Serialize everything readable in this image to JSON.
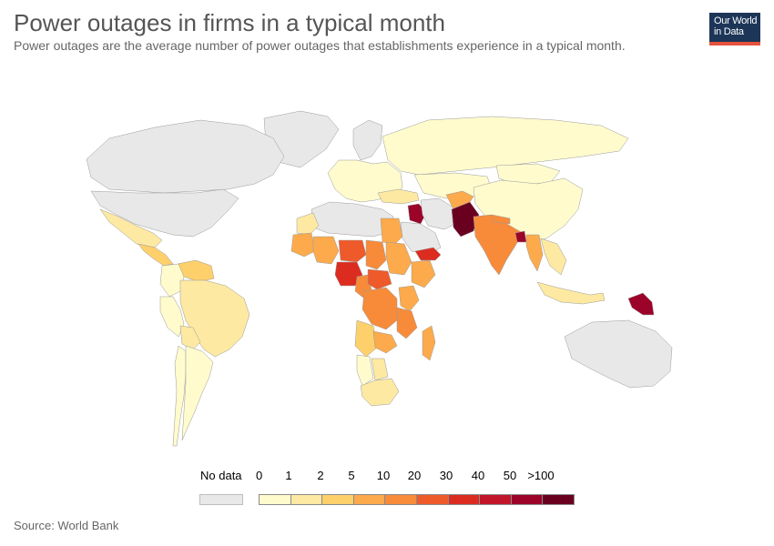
{
  "header": {
    "title": "Power outages in firms in a typical month",
    "subtitle": "Power outages are the average number of power outages that establishments experience in a typical month."
  },
  "logo": {
    "line1": "Our World",
    "line2": "in Data",
    "bg_color": "#1d3557",
    "accent_color": "#e5533f"
  },
  "map": {
    "no_data_color": "#e8e8e8",
    "regions": [
      {
        "name": "Canada",
        "bin": "nodata"
      },
      {
        "name": "United States",
        "bin": "nodata"
      },
      {
        "name": "Greenland",
        "bin": "nodata"
      },
      {
        "name": "Mexico",
        "bin": "1-2"
      },
      {
        "name": "Central America",
        "bin": "2-5"
      },
      {
        "name": "Colombia",
        "bin": "0-1"
      },
      {
        "name": "Venezuela",
        "bin": "2-5"
      },
      {
        "name": "Brazil",
        "bin": "1-2"
      },
      {
        "name": "Peru",
        "bin": "0-1"
      },
      {
        "name": "Bolivia",
        "bin": "1-2"
      },
      {
        "name": "Argentina",
        "bin": "0-1"
      },
      {
        "name": "Chile",
        "bin": "0-1"
      },
      {
        "name": "Europe",
        "bin": "0-1"
      },
      {
        "name": "Scandinavia",
        "bin": "nodata"
      },
      {
        "name": "Russia",
        "bin": "0-1"
      },
      {
        "name": "Kazakhstan",
        "bin": "0-1"
      },
      {
        "name": "Turkey",
        "bin": "1-2"
      },
      {
        "name": "Iraq",
        "bin": "50-100"
      },
      {
        "name": "Iran",
        "bin": "nodata"
      },
      {
        "name": "Saudi Arabia",
        "bin": "nodata"
      },
      {
        "name": "Yemen",
        "bin": "30-40"
      },
      {
        "name": "Afghanistan",
        "bin": "5-10"
      },
      {
        "name": "Pakistan",
        "bin": ">100"
      },
      {
        "name": "India",
        "bin": "10-20"
      },
      {
        "name": "Nepal",
        "bin": "10-20"
      },
      {
        "name": "Bangladesh",
        "bin": "50-100"
      },
      {
        "name": "China",
        "bin": "0-1"
      },
      {
        "name": "Mongolia",
        "bin": "0-1"
      },
      {
        "name": "Myanmar",
        "bin": "5-10"
      },
      {
        "name": "Southeast Asia",
        "bin": "1-2"
      },
      {
        "name": "Indonesia",
        "bin": "1-2"
      },
      {
        "name": "Papua New Guinea",
        "bin": "50-100"
      },
      {
        "name": "Australia",
        "bin": "nodata"
      },
      {
        "name": "North Africa",
        "bin": "nodata"
      },
      {
        "name": "Morocco",
        "bin": "1-2"
      },
      {
        "name": "Egypt",
        "bin": "5-10"
      },
      {
        "name": "Mauritania",
        "bin": "5-10"
      },
      {
        "name": "Mali",
        "bin": "5-10"
      },
      {
        "name": "Niger",
        "bin": "20-30"
      },
      {
        "name": "Nigeria",
        "bin": "30-40"
      },
      {
        "name": "Chad",
        "bin": "10-20"
      },
      {
        "name": "Sudan",
        "bin": "5-10"
      },
      {
        "name": "Ethiopia",
        "bin": "5-10"
      },
      {
        "name": "Cameroon",
        "bin": "10-20"
      },
      {
        "name": "Central African Republic",
        "bin": "20-30"
      },
      {
        "name": "DR Congo",
        "bin": "10-20"
      },
      {
        "name": "Tanzania",
        "bin": "10-20"
      },
      {
        "name": "Kenya",
        "bin": "5-10"
      },
      {
        "name": "Angola",
        "bin": "2-5"
      },
      {
        "name": "Zambia",
        "bin": "5-10"
      },
      {
        "name": "Namibia",
        "bin": "0-1"
      },
      {
        "name": "Botswana",
        "bin": "1-2"
      },
      {
        "name": "South Africa",
        "bin": "1-2"
      },
      {
        "name": "Madagascar",
        "bin": "5-10"
      }
    ]
  },
  "legend": {
    "no_data_label": "No data",
    "ticks": [
      "0",
      "1",
      "2",
      "5",
      "10",
      "20",
      "30",
      "40",
      "50",
      ">100"
    ],
    "bins": [
      {
        "key": "0-1",
        "color": "#fffbcd"
      },
      {
        "key": "1-2",
        "color": "#fde9a2"
      },
      {
        "key": "2-5",
        "color": "#fdd06b"
      },
      {
        "key": "5-10",
        "color": "#fcaa4b"
      },
      {
        "key": "10-20",
        "color": "#f78b3a"
      },
      {
        "key": "20-30",
        "color": "#ee5a2a"
      },
      {
        "key": "30-40",
        "color": "#dc2c20"
      },
      {
        "key": "40-50",
        "color": "#c11529"
      },
      {
        "key": "50-100",
        "color": "#9c0328"
      },
      {
        "key": ">100",
        "color": "#6a0020"
      }
    ]
  },
  "footer": {
    "source": "Source: World Bank"
  }
}
